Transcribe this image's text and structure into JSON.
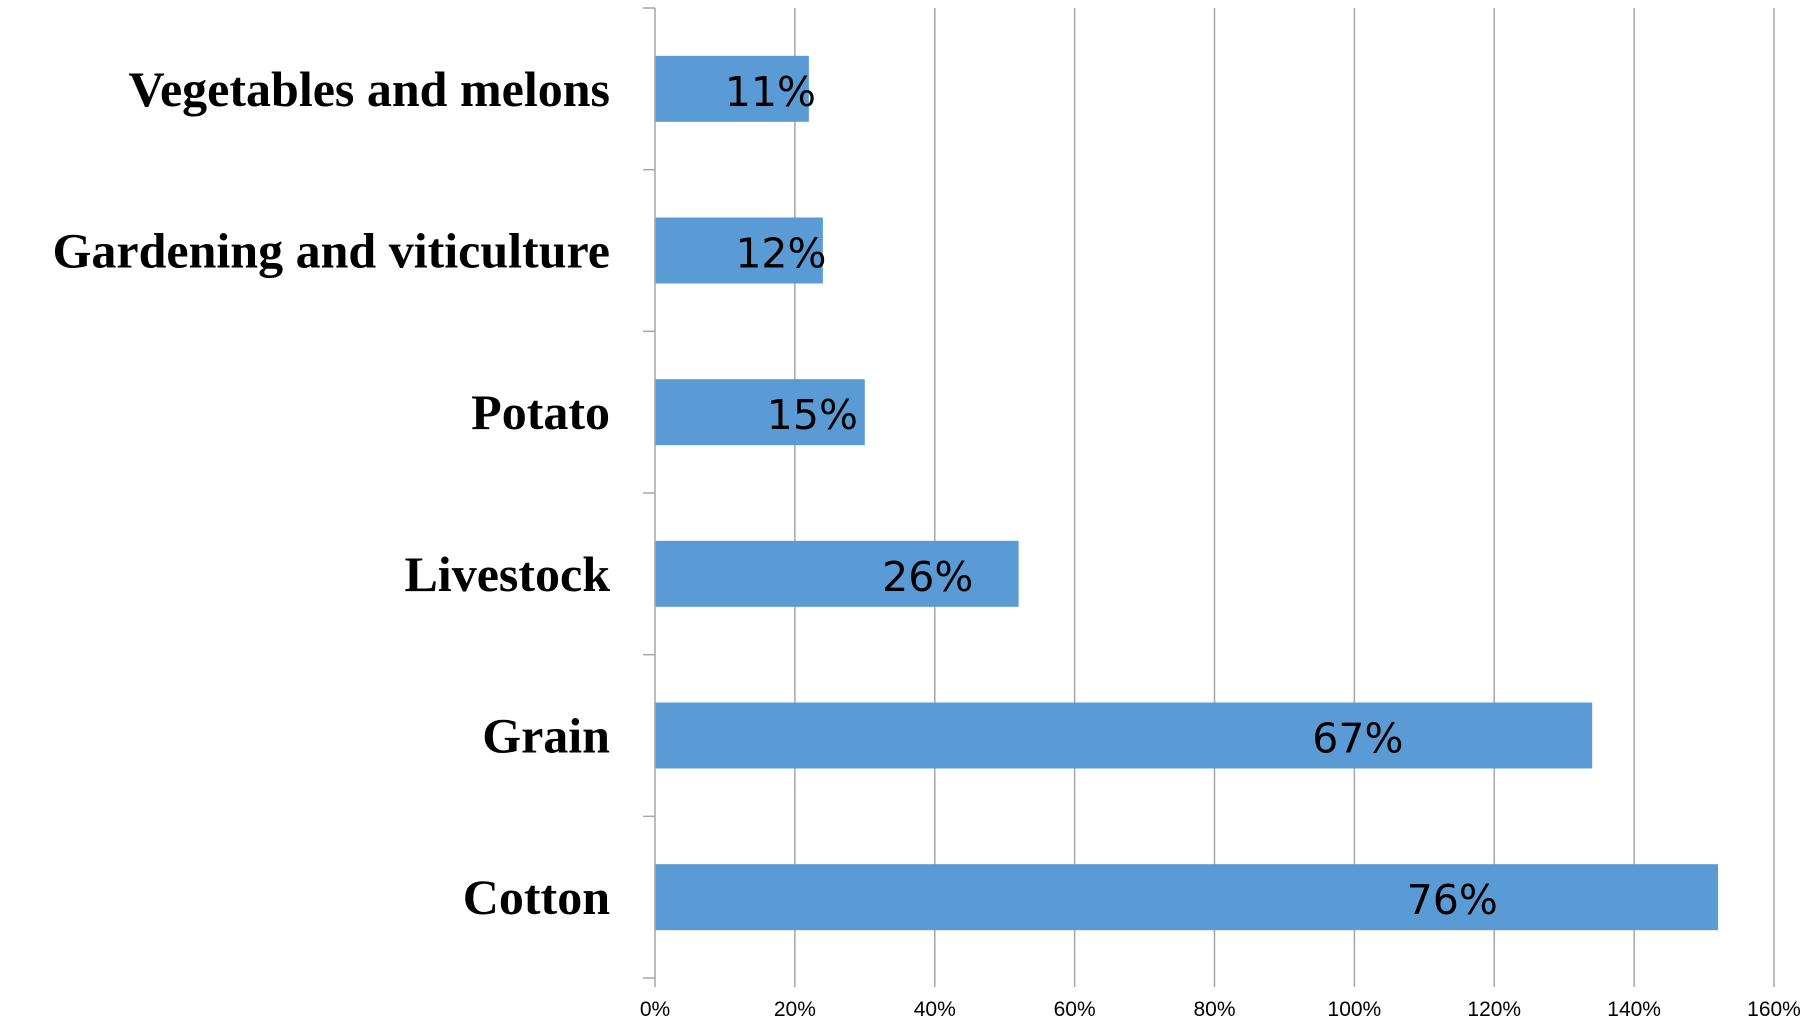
{
  "chart_data": {
    "type": "bar",
    "orientation": "horizontal",
    "categories": [
      "Vegetables and melons",
      "Gardening and viticulture",
      "Potato",
      "Livestock",
      "Grain",
      "Cotton"
    ],
    "values": [
      22,
      24,
      30,
      52,
      134,
      152
    ],
    "data_labels": [
      "11%",
      "12%",
      "15%",
      "26%",
      "67%",
      "76%"
    ],
    "x_ticks": [
      "0%",
      "20%",
      "40%",
      "60%",
      "80%",
      "100%",
      "120%",
      "140%",
      "160%"
    ],
    "xlim": [
      0,
      160
    ],
    "grid": true,
    "bar_color": "#5b9bd5",
    "grid_color": "#a6a6a6",
    "title": "",
    "xlabel": "",
    "ylabel": ""
  }
}
